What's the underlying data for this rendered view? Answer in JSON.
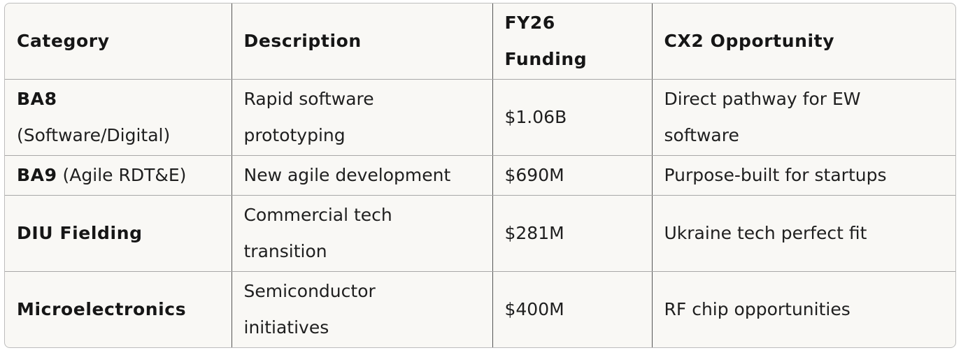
{
  "table": {
    "headers": [
      "Category",
      "Description",
      "FY26 Funding",
      "CX2 Opportunity"
    ],
    "header_lines": {
      "funding": [
        "FY26",
        "Funding"
      ]
    },
    "rows": [
      {
        "category_bold": "BA8",
        "category_rest": "(Software/Digital)",
        "description": "Rapid software prototyping",
        "description_lines": [
          "Rapid software",
          "prototyping"
        ],
        "funding": "$1.06B",
        "opportunity": "Direct pathway for EW software",
        "opportunity_lines": [
          "Direct pathway for EW",
          "software"
        ]
      },
      {
        "category_bold": "BA9",
        "category_rest": " (Agile RDT&E)",
        "description": "New agile development",
        "funding": "$690M",
        "opportunity": "Purpose-built for startups"
      },
      {
        "category_bold": "DIU Fielding",
        "description": "Commercial tech transition",
        "description_lines": [
          "Commercial tech",
          "transition"
        ],
        "funding": "$281M",
        "opportunity": "Ukraine tech perfect fit"
      },
      {
        "category_bold": "Microelectronics",
        "description": "Semiconductor initiatives",
        "description_lines": [
          "Semiconductor",
          "initiatives"
        ],
        "funding": "$400M",
        "opportunity": "RF chip opportunities"
      }
    ]
  }
}
